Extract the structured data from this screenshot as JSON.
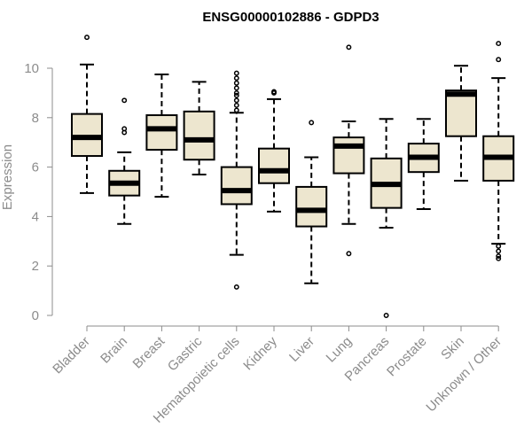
{
  "chart_data": {
    "type": "boxplot",
    "title": "ENSG00000102886 - GDPD3",
    "xlabel": "",
    "ylabel": "Expression",
    "ylim": [
      0,
      11.5
    ],
    "yticks": [
      0,
      2,
      4,
      6,
      8,
      10
    ],
    "grid": false,
    "colors": {
      "box_fill": "#ede6cf",
      "stroke": "#000000",
      "axis": "#8c8c8c"
    },
    "categories": [
      "Bladder",
      "Brain",
      "Breast",
      "Gastric",
      "Hematopoietic cells",
      "Kidney",
      "Liver",
      "Lung",
      "Pancreas",
      "Prostate",
      "Skin",
      "Unknown / Other"
    ],
    "boxes": [
      {
        "min": 4.95,
        "q1": 6.45,
        "median": 7.2,
        "q3": 8.15,
        "max": 10.15,
        "outliers": [
          11.25
        ]
      },
      {
        "min": 3.7,
        "q1": 4.85,
        "median": 5.35,
        "q3": 5.85,
        "max": 6.6,
        "outliers": [
          7.4,
          7.55,
          8.7
        ]
      },
      {
        "min": 4.8,
        "q1": 6.7,
        "median": 7.55,
        "q3": 8.1,
        "max": 9.75,
        "outliers": []
      },
      {
        "min": 5.7,
        "q1": 6.3,
        "median": 7.1,
        "q3": 8.25,
        "max": 9.45,
        "outliers": []
      },
      {
        "min": 2.45,
        "q1": 4.5,
        "median": 5.05,
        "q3": 6.0,
        "max": 8.2,
        "outliers": [
          8.3,
          8.5,
          8.7,
          8.9,
          9.0,
          9.2,
          9.4,
          9.6,
          9.8,
          1.15
        ]
      },
      {
        "min": 4.2,
        "q1": 5.35,
        "median": 5.85,
        "q3": 6.75,
        "max": 8.75,
        "outliers": [
          9.0,
          9.05
        ]
      },
      {
        "min": 1.3,
        "q1": 3.6,
        "median": 4.25,
        "q3": 5.2,
        "max": 6.4,
        "outliers": [
          7.8
        ]
      },
      {
        "min": 3.7,
        "q1": 5.75,
        "median": 6.85,
        "q3": 7.2,
        "max": 7.85,
        "outliers": [
          10.85,
          2.5
        ]
      },
      {
        "min": 3.55,
        "q1": 4.35,
        "median": 5.3,
        "q3": 6.35,
        "max": 7.95,
        "outliers": [
          0.0
        ]
      },
      {
        "min": 4.3,
        "q1": 5.8,
        "median": 6.4,
        "q3": 6.95,
        "max": 7.95,
        "outliers": []
      },
      {
        "min": 5.45,
        "q1": 7.25,
        "median": 8.95,
        "q3": 9.1,
        "max": 10.1,
        "outliers": []
      },
      {
        "min": 2.9,
        "q1": 5.45,
        "median": 6.4,
        "q3": 7.25,
        "max": 9.6,
        "outliers": [
          11.0,
          10.35,
          2.8,
          2.6,
          2.4,
          2.3
        ]
      }
    ]
  }
}
